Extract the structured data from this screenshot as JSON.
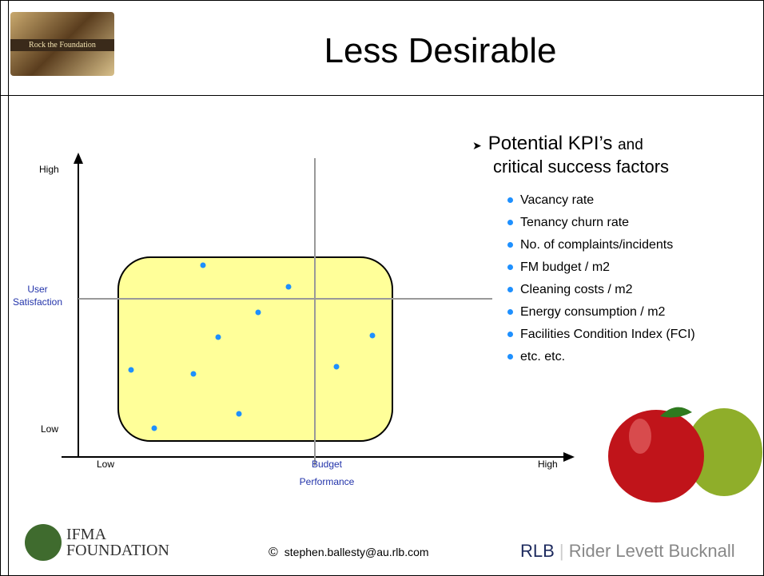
{
  "header": {
    "title": "Less Desirable",
    "logo": "Rock the Foundation"
  },
  "diagram": {
    "y_high": "High",
    "y_low": "Low",
    "y_label": [
      "User",
      "Satisfaction"
    ],
    "x_low": "Low",
    "x_high": "High",
    "x_label": [
      "Budget",
      "Performance"
    ]
  },
  "kpis": {
    "heading_main": "Potential KPI’s",
    "heading_and": "and",
    "heading_rest": "critical success factors",
    "items": [
      "Vacancy rate",
      "Tenancy churn rate",
      "No. of complaints/incidents",
      "FM budget / m2",
      "Cleaning costs / m2",
      "Energy consumption / m2",
      "Facilities Condition Index (FCI)",
      "etc. etc."
    ]
  },
  "footer": {
    "ifma_1": "IFMA",
    "ifma_2": "FOUNDATION",
    "copyright_symbol": "©",
    "email": "stephen.ballesty@au.rlb.com",
    "rlb": "RLB",
    "rlb_name": "Rider Levett Bucknall"
  }
}
